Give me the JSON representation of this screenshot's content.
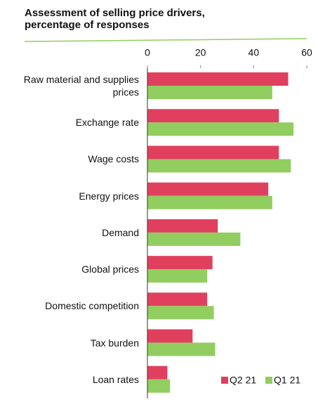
{
  "chart_data": {
    "type": "bar",
    "orientation": "horizontal",
    "title": "Assessment of selling price drivers, percentage of responses",
    "categories": [
      "Raw material and supplies prices",
      "Exchange rate",
      "Wage costs",
      "Energy prices",
      "Demand",
      "Global prices",
      "Domestic competition",
      "Tax burden",
      "Loan rates"
    ],
    "series": [
      {
        "name": "Q2 21",
        "color": "#e0405e",
        "values": [
          53,
          49.5,
          49.5,
          45.5,
          26.5,
          24.5,
          22.5,
          17,
          7.5
        ]
      },
      {
        "name": "Q1 21",
        "color": "#92cd5f",
        "values": [
          47,
          55,
          54,
          47,
          35,
          22.5,
          25,
          25.5,
          8.5
        ]
      }
    ],
    "xlim": [
      0,
      60
    ],
    "xticks": [
      0,
      20,
      40,
      60
    ],
    "legend": "lower right"
  }
}
